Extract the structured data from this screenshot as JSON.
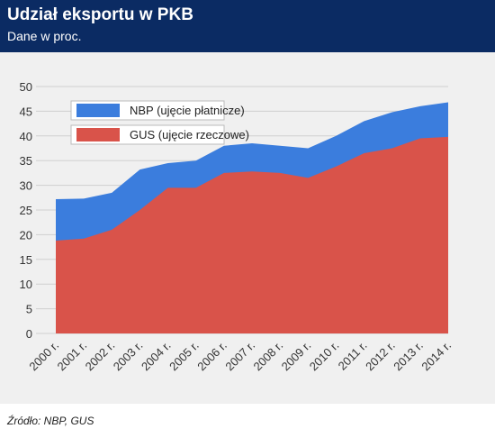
{
  "header": {
    "title": "Udział eksportu w PKB",
    "subtitle": "Dane w proc."
  },
  "source": "Źródło: NBP, GUS",
  "colors": {
    "header_bg": "#0b2b63",
    "nbp": "#3b7ddd",
    "gus": "#d9534a",
    "plot_bg": "#f0f0f0"
  },
  "chart_data": {
    "type": "area",
    "categories": [
      "2000 r.",
      "2001 r.",
      "2002 r.",
      "2003 r.",
      "2004 r.",
      "2005 r.",
      "2006 r.",
      "2007 r.",
      "2008 r.",
      "2009 r.",
      "2010 r.",
      "2011 r.",
      "2012 r.",
      "2013 r.",
      "2014 r."
    ],
    "series": [
      {
        "name": "NBP (ujęcie płatnicze)",
        "values": [
          27.2,
          27.3,
          28.5,
          33.2,
          34.5,
          35.0,
          38.0,
          38.5,
          38.0,
          37.5,
          40.0,
          43.0,
          44.8,
          46.0,
          46.8
        ]
      },
      {
        "name": "GUS (ujęcie rzeczowe)",
        "values": [
          18.8,
          19.2,
          21.0,
          25.0,
          29.5,
          29.5,
          32.5,
          32.8,
          32.5,
          31.5,
          33.8,
          36.5,
          37.5,
          39.5,
          39.8
        ]
      }
    ],
    "y_ticks": [
      0,
      5,
      10,
      15,
      20,
      25,
      30,
      35,
      40,
      45,
      50
    ],
    "ylim": [
      0,
      50
    ],
    "stacked": false,
    "legend_position": "top-left",
    "grid": true
  }
}
